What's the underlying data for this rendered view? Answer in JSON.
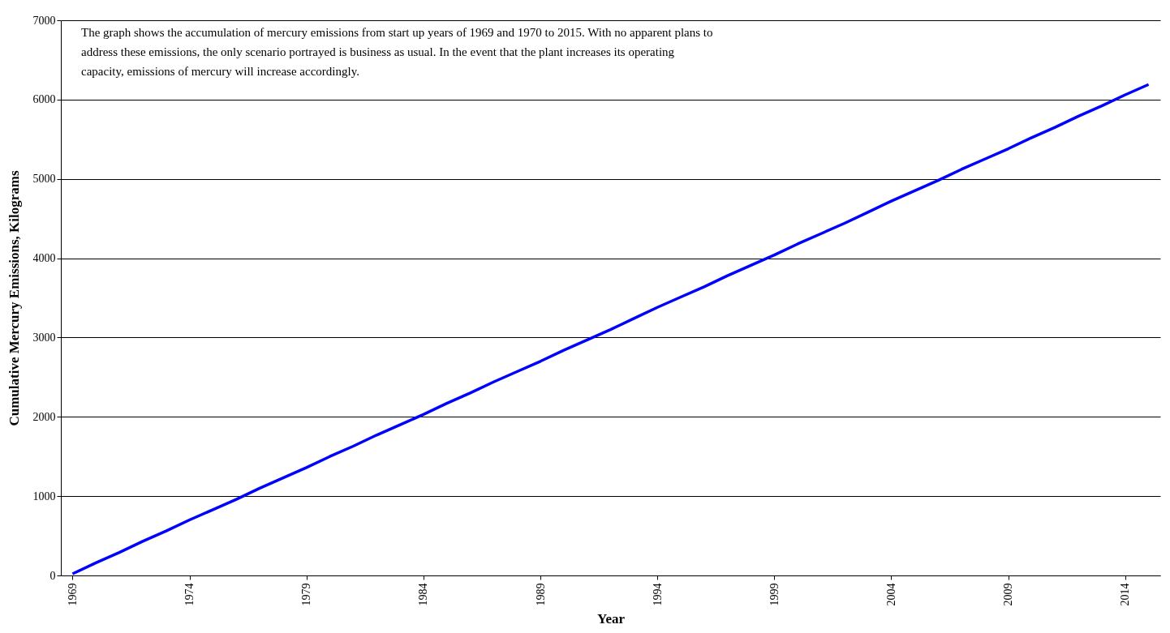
{
  "chart_data": {
    "type": "line",
    "xlabel": "Year",
    "ylabel": "Cumulative Mercury Emissions, Kilograms",
    "annotations": [
      "The graph shows the accumulation of mercury emissions from start up years of 1969 and 1970 to 2015. With no apparent plans to address these emissions, the only scenario portrayed is business as usual. In the event that the plant  increases its operating capacity, emissions of mercury will increase accordingly."
    ],
    "x": [
      1969,
      1970,
      1971,
      1972,
      1973,
      1974,
      1975,
      1976,
      1977,
      1978,
      1979,
      1980,
      1981,
      1982,
      1983,
      1984,
      1985,
      1986,
      1987,
      1988,
      1989,
      1990,
      1991,
      1992,
      1993,
      1994,
      1995,
      1996,
      1997,
      1998,
      1999,
      2000,
      2001,
      2002,
      2003,
      2004,
      2005,
      2006,
      2007,
      2008,
      2009,
      2010,
      2011,
      2012,
      2013,
      2014,
      2015
    ],
    "series": [
      {
        "color": "#0000ff",
        "values": [
          20,
          160,
          290,
          430,
          560,
          700,
          830,
          960,
          1100,
          1230,
          1360,
          1500,
          1630,
          1770,
          1900,
          2030,
          2170,
          2300,
          2440,
          2570,
          2700,
          2840,
          2970,
          3100,
          3240,
          3380,
          3510,
          3640,
          3780,
          3910,
          4040,
          4180,
          4310,
          4440,
          4580,
          4720,
          4850,
          4980,
          5120,
          5250,
          5380,
          5520,
          5650,
          5790,
          5920,
          6060,
          6190
        ]
      }
    ],
    "xlim": [
      1968.5,
      2015.5
    ],
    "xticks": [
      1969,
      1974,
      1979,
      1984,
      1989,
      1994,
      1999,
      2004,
      2009,
      2014
    ],
    "ylim": [
      0,
      7000
    ],
    "yticks": [
      0,
      1000,
      2000,
      3000,
      4000,
      5000,
      6000,
      7000
    ],
    "grid": "y"
  }
}
